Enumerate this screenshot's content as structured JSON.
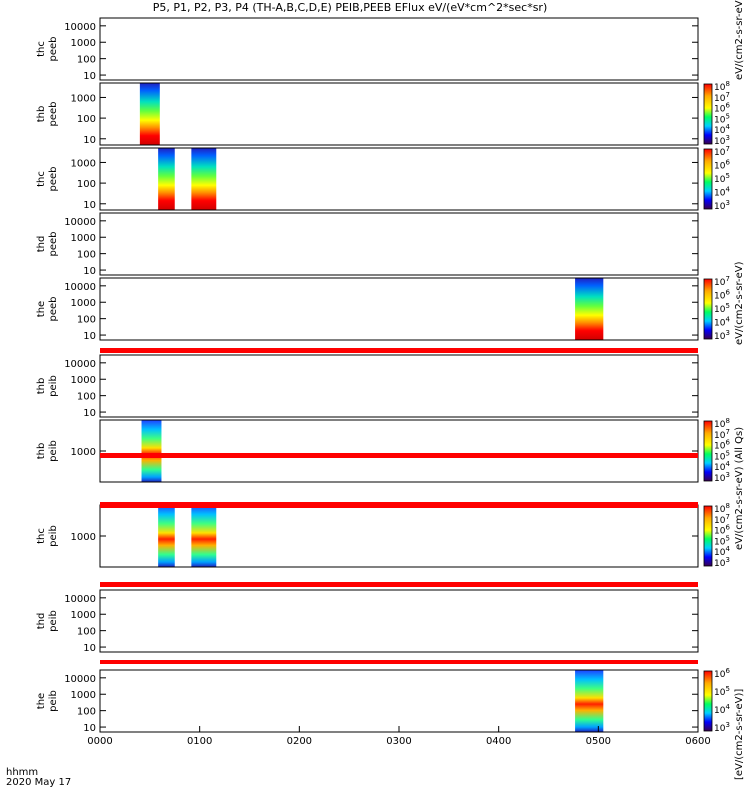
{
  "title": "P5, P1, P2, P3, P4 (TH-A,B,C,D,E) PEIB,PEEB EFlux eV/(eV*cm^2*sec*sr)",
  "footer": {
    "axis_name": "hhmm",
    "date": "2020 May 17"
  },
  "colorbar_labels": {
    "electron_all_qs": "eV/(cm2-s-sr-eV) (All Qs)",
    "electron": "eV/(cm2-s-sr-eV)",
    "ion_all_qs": "eV/(cm2-s-sr-eV) (All Qs)",
    "ion": "[eV/(cm2-s-sr-eV)]"
  },
  "chart_data": {
    "type": "heatmap",
    "x_ticks": [
      "0000",
      "0100",
      "0200",
      "0300",
      "0400",
      "0500",
      "0600"
    ],
    "x_range_hhmm": [
      "0000",
      "0600"
    ],
    "colormap": "rainbow (purple-blue-cyan-green-yellow-red)",
    "panels": [
      {
        "probe": "thc",
        "instrument": "peeb",
        "y_ticks": [
          "10000",
          "1000",
          "100",
          "10"
        ],
        "y_range_eV": [
          5,
          30000
        ],
        "data_blocks": [],
        "colorbar": null
      },
      {
        "probe": "thb",
        "instrument": "peeb",
        "y_ticks": [
          "1000",
          "100",
          "10"
        ],
        "y_range_eV": [
          5,
          5000
        ],
        "data_blocks": [
          {
            "start": "0024",
            "end": "0036"
          }
        ],
        "colorbar": {
          "exp_ticks": [
            3,
            4,
            5,
            6,
            7,
            8
          ]
        }
      },
      {
        "probe": "thc",
        "instrument": "peeb",
        "y_ticks": [
          "1000",
          "100",
          "10"
        ],
        "y_range_eV": [
          5,
          5000
        ],
        "data_blocks": [
          {
            "start": "0035",
            "end": "0045"
          },
          {
            "start": "0055",
            "end": "0070"
          }
        ],
        "colorbar": {
          "exp_ticks": [
            3,
            4,
            5,
            6,
            7
          ]
        }
      },
      {
        "probe": "thd",
        "instrument": "peeb",
        "y_ticks": [
          "10000",
          "1000",
          "100",
          "10"
        ],
        "y_range_eV": [
          5,
          30000
        ],
        "data_blocks": [],
        "colorbar": null
      },
      {
        "probe": "the",
        "instrument": "peeb",
        "y_ticks": [
          "10000",
          "1000",
          "100",
          "10"
        ],
        "y_range_eV": [
          5,
          30000
        ],
        "data_blocks": [
          {
            "start": "0446",
            "end": "0463"
          }
        ],
        "colorbar": {
          "exp_ticks": [
            3,
            4,
            5,
            6,
            7
          ]
        }
      },
      {
        "probe": "thb",
        "instrument": "peib",
        "y_ticks": [
          "10000",
          "1000",
          "100",
          "10"
        ],
        "y_range_eV": [
          5,
          30000
        ],
        "data_blocks": [],
        "colorbar": null
      },
      {
        "probe": "thb",
        "instrument": "peib",
        "y_ticks": [
          "1000"
        ],
        "y_range_eV": [
          200,
          5000
        ],
        "data_blocks": [
          {
            "start": "0025",
            "end": "0037"
          }
        ],
        "colorbar": {
          "exp_ticks": [
            3,
            4,
            5,
            6,
            7,
            8
          ]
        }
      },
      {
        "probe": "thc",
        "instrument": "peib",
        "y_ticks": [
          "1000"
        ],
        "y_range_eV": [
          200,
          5000
        ],
        "data_blocks": [
          {
            "start": "0035",
            "end": "0045"
          },
          {
            "start": "0055",
            "end": "0070"
          }
        ],
        "colorbar": {
          "exp_ticks": [
            3,
            4,
            5,
            6,
            7,
            8
          ]
        }
      },
      {
        "probe": "thd",
        "instrument": "peib",
        "y_ticks": [
          "10000",
          "1000",
          "100",
          "10"
        ],
        "y_range_eV": [
          5,
          30000
        ],
        "data_blocks": [],
        "colorbar": null
      },
      {
        "probe": "the",
        "instrument": "peib",
        "y_ticks": [
          "10000",
          "1000",
          "100",
          "10"
        ],
        "y_range_eV": [
          5,
          30000
        ],
        "data_blocks": [
          {
            "start": "0446",
            "end": "0463"
          }
        ],
        "colorbar": {
          "exp_ticks": [
            3,
            4,
            5,
            6
          ]
        }
      }
    ]
  }
}
